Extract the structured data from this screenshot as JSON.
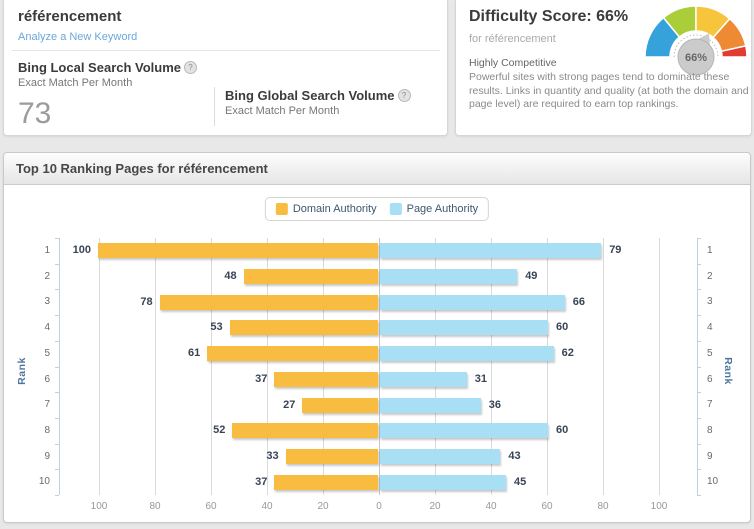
{
  "keyword_card": {
    "title": "référencement",
    "link": "Analyze a New Keyword",
    "local": {
      "title": "Bing Local Search Volume",
      "subtitle": "Exact Match Per Month",
      "value": "73"
    },
    "global": {
      "title": "Bing Global Search Volume",
      "subtitle": "Exact Match Per Month"
    }
  },
  "difficulty_card": {
    "title": "Difficulty Score: 66%",
    "subtitle": "for référencement",
    "competitiveness": "Highly Competitive",
    "description": "Powerful sites with strong pages tend to dominate these results. Links in quantity and quality (at both the domain and page level) are required to earn top rankings.",
    "gauge": {
      "value_label": "66%",
      "pointer_value": 66,
      "bubble_color": "#cbcbcb",
      "segments": [
        {
          "from": 0,
          "to": 28,
          "color": "#36a2db"
        },
        {
          "from": 28,
          "to": 50,
          "color": "#a9ce39"
        },
        {
          "from": 50,
          "to": 73,
          "color": "#f6c53c"
        },
        {
          "from": 73,
          "to": 93,
          "color": "#ee8a33"
        },
        {
          "from": 93,
          "to": 100,
          "color": "#e23b31"
        }
      ]
    }
  },
  "panel": {
    "title": "Top 10 Ranking Pages for référencement"
  },
  "chart_data": {
    "type": "bar",
    "orientation": "horizontal-mirrored",
    "title": "Top 10 Ranking Pages for référencement",
    "categories": [
      1,
      2,
      3,
      4,
      5,
      6,
      7,
      8,
      9,
      10
    ],
    "series": [
      {
        "name": "Domain Authority",
        "color": "#f8bc40",
        "side": "left",
        "values": [
          100,
          48,
          78,
          53,
          61,
          37,
          27,
          52,
          33,
          37
        ]
      },
      {
        "name": "Page Authority",
        "color": "#a8dff5",
        "side": "right",
        "values": [
          79,
          49,
          66,
          60,
          62,
          31,
          36,
          60,
          43,
          45
        ]
      }
    ],
    "axis": {
      "label": "Rank",
      "ticks": [
        100,
        80,
        60,
        40,
        20,
        0,
        20,
        40,
        60,
        80,
        100
      ],
      "max_per_side": 100
    },
    "legend_position": "top-center",
    "grid": true
  }
}
